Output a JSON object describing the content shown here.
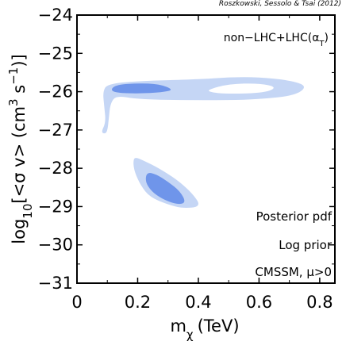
{
  "credit": "Roszkowski, Sessolo & Tsai (2012)",
  "chart_data": {
    "type": "contour",
    "xlabel_main": "m",
    "xlabel_sub": "χ",
    "xlabel_unit": "(TeV)",
    "ylabel_parts": {
      "log": "log",
      "log_sub": "10",
      "open": "[<σ v> (cm",
      "sup1": "3",
      "mid": " s",
      "sup2": "−1",
      "close": ")]"
    },
    "xlim": [
      0,
      0.85
    ],
    "ylim": [
      -31,
      -24
    ],
    "xticks": [
      0,
      0.2,
      0.4,
      0.6,
      0.8
    ],
    "xtick_labels": [
      "0",
      "0.2",
      "0.4",
      "0.6",
      "0.8"
    ],
    "yticks": [
      -31,
      -30,
      -29,
      -28,
      -27,
      -26,
      -25,
      -24
    ],
    "ytick_labels": [
      "−31",
      "−30",
      "−29",
      "−28",
      "−27",
      "−26",
      "−25",
      "−24"
    ],
    "colors": {
      "outer": "#c5d6f5",
      "inner": "#6f95ea"
    },
    "annotations": {
      "top": {
        "text": "non−LHC+LHC(α",
        "sub": "T",
        "tail": ")"
      },
      "lines": [
        "Posterior pdf",
        "Log prior",
        "CMSSM, μ>0"
      ]
    },
    "regions": [
      {
        "level": "outer",
        "points": [
          [
            0.08,
            -27.05
          ],
          [
            0.095,
            -26.8
          ],
          [
            0.09,
            -26.4
          ],
          [
            0.085,
            -26.0
          ],
          [
            0.1,
            -25.8
          ],
          [
            0.2,
            -25.72
          ],
          [
            0.4,
            -25.68
          ],
          [
            0.5,
            -25.62
          ],
          [
            0.6,
            -25.62
          ],
          [
            0.7,
            -25.7
          ],
          [
            0.76,
            -25.85
          ],
          [
            0.72,
            -26.1
          ],
          [
            0.6,
            -26.2
          ],
          [
            0.5,
            -26.22
          ],
          [
            0.35,
            -26.22
          ],
          [
            0.2,
            -26.2
          ],
          [
            0.13,
            -26.1
          ],
          [
            0.11,
            -26.3
          ],
          [
            0.105,
            -26.7
          ],
          [
            0.1,
            -27.05
          ],
          [
            0.09,
            -27.1
          ]
        ]
      },
      {
        "level": "hole",
        "points": [
          [
            0.43,
            -25.95
          ],
          [
            0.5,
            -25.8
          ],
          [
            0.6,
            -25.78
          ],
          [
            0.66,
            -25.88
          ],
          [
            0.62,
            -26.03
          ],
          [
            0.5,
            -26.06
          ],
          [
            0.44,
            -26.02
          ]
        ]
      },
      {
        "level": "inner",
        "points": [
          [
            0.11,
            -25.95
          ],
          [
            0.13,
            -25.82
          ],
          [
            0.2,
            -25.78
          ],
          [
            0.27,
            -25.8
          ],
          [
            0.32,
            -25.95
          ],
          [
            0.28,
            -26.02
          ],
          [
            0.2,
            -26.05
          ],
          [
            0.13,
            -26.03
          ]
        ]
      },
      {
        "level": "outer",
        "points": [
          [
            0.19,
            -27.7
          ],
          [
            0.22,
            -27.8
          ],
          [
            0.27,
            -28.0
          ],
          [
            0.33,
            -28.3
          ],
          [
            0.38,
            -28.65
          ],
          [
            0.41,
            -29.0
          ],
          [
            0.35,
            -29.05
          ],
          [
            0.3,
            -28.95
          ],
          [
            0.24,
            -28.75
          ],
          [
            0.21,
            -28.45
          ],
          [
            0.19,
            -28.1
          ],
          [
            0.185,
            -27.85
          ]
        ]
      },
      {
        "level": "inner",
        "points": [
          [
            0.23,
            -28.1
          ],
          [
            0.26,
            -28.15
          ],
          [
            0.3,
            -28.35
          ],
          [
            0.34,
            -28.6
          ],
          [
            0.36,
            -28.9
          ],
          [
            0.33,
            -28.95
          ],
          [
            0.28,
            -28.8
          ],
          [
            0.245,
            -28.6
          ],
          [
            0.225,
            -28.35
          ]
        ]
      }
    ]
  }
}
